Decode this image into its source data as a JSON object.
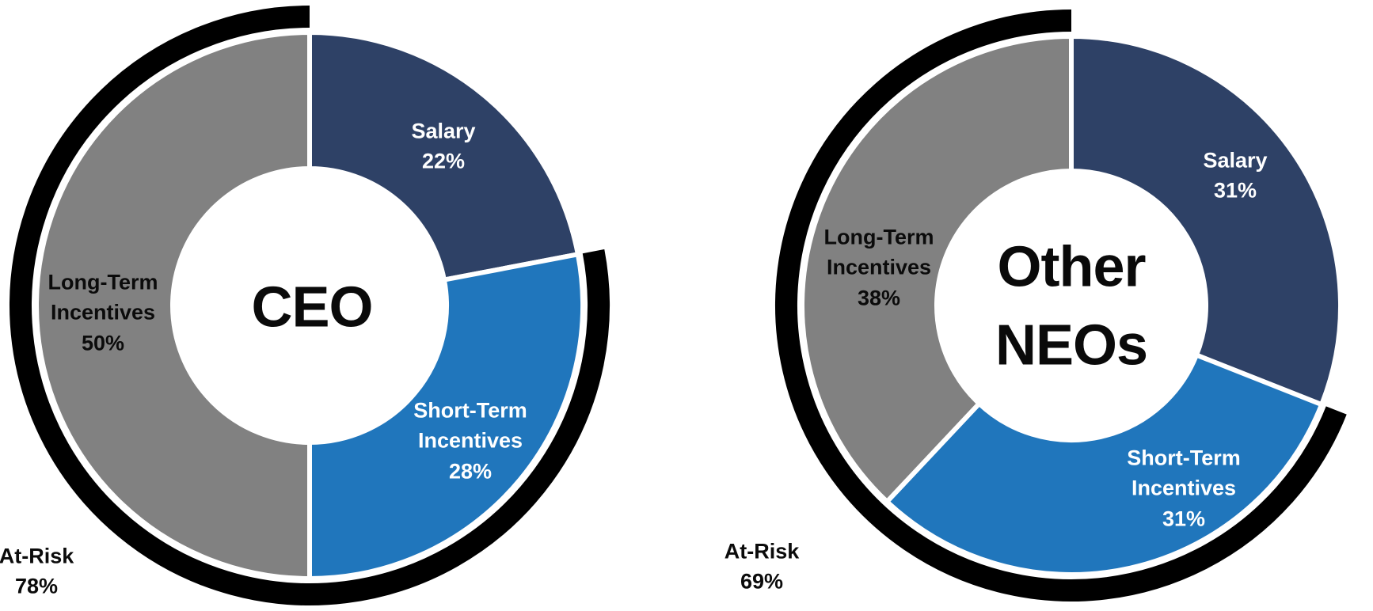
{
  "page": {
    "background": "#ffffff",
    "description_colors": {
      "navy": "#2E4166",
      "blue": "#2076BC",
      "gray": "#818181",
      "at_risk_black": "#000000",
      "divider_white": "#ffffff"
    }
  },
  "chart_data": [
    {
      "type": "pie",
      "subtype": "donut-with-outer-arc",
      "center_label": "CEO",
      "categories": [
        "Salary",
        "Short-Term Incentives",
        "Long-Term Incentives"
      ],
      "values": [
        22,
        28,
        50
      ],
      "segments": [
        {
          "name": "Salary",
          "pct": "22%",
          "value": 22,
          "color": "#2E4166",
          "label_color": "white"
        },
        {
          "name": "Short-Term Incentives",
          "pct": "28%",
          "value": 28,
          "color": "#2076BC",
          "label_color": "white"
        },
        {
          "name": "Long-Term Incentives",
          "pct": "50%",
          "value": 50,
          "color": "#818181",
          "label_color": "black"
        }
      ],
      "at_risk": {
        "label": "At-Risk",
        "pct": "78%",
        "value": 78,
        "color": "#000000"
      },
      "layout_hints": {
        "start_angle": "12 o'clock",
        "direction": "clockwise",
        "outer_arc_spans": "Short-Term + Long-Term Incentives"
      }
    },
    {
      "type": "pie",
      "subtype": "donut-with-outer-arc",
      "center_label": "Other NEOs",
      "categories": [
        "Salary",
        "Short-Term Incentives",
        "Long-Term Incentives"
      ],
      "values": [
        31,
        31,
        38
      ],
      "segments": [
        {
          "name": "Salary",
          "pct": "31%",
          "value": 31,
          "color": "#2E4166",
          "label_color": "white"
        },
        {
          "name": "Short-Term Incentives",
          "pct": "31%",
          "value": 31,
          "color": "#2076BC",
          "label_color": "white"
        },
        {
          "name": "Long-Term Incentives",
          "pct": "38%",
          "value": 38,
          "color": "#818181",
          "label_color": "black"
        }
      ],
      "at_risk": {
        "label": "At-Risk",
        "pct": "69%",
        "value": 69,
        "color": "#000000"
      },
      "layout_hints": {
        "start_angle": "12 o'clock",
        "direction": "clockwise",
        "outer_arc_spans": "Short-Term + Long-Term Incentives"
      }
    }
  ]
}
